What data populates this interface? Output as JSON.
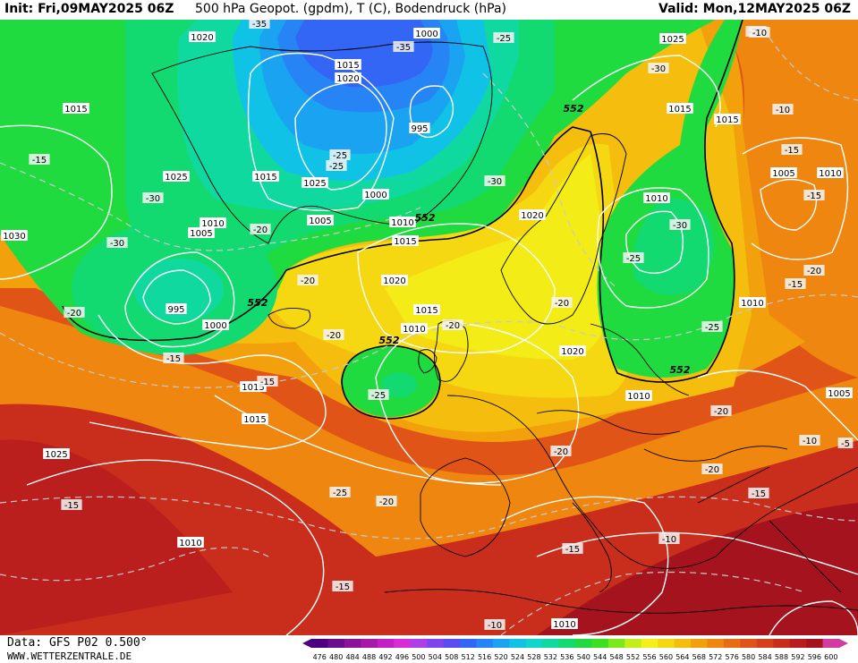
{
  "header": {
    "init": "Init: Fri,09MAY2025 06Z",
    "title": "500 hPa Geopot. (gpdm), T (C), Bodendruck (hPa)",
    "valid": "Valid: Mon,12MAY2025 06Z"
  },
  "footer": {
    "source": "Data: GFS P02 0.500°",
    "website": "WWW.WETTERZENTRALE.DE"
  },
  "legend": {
    "values": [
      476,
      480,
      484,
      488,
      492,
      496,
      500,
      504,
      508,
      512,
      516,
      520,
      524,
      528,
      532,
      536,
      540,
      544,
      548,
      552,
      556,
      560,
      564,
      568,
      572,
      576,
      580,
      584,
      588,
      592,
      596,
      600
    ],
    "colors": [
      "#4b0082",
      "#6a0c8c",
      "#8a1399",
      "#a61aa8",
      "#c41fc4",
      "#d92cd9",
      "#b03ee6",
      "#8046ee",
      "#5a4cf2",
      "#3366f5",
      "#2684f5",
      "#1aa3f0",
      "#10c2e6",
      "#0fd6cc",
      "#10d9a0",
      "#12d970",
      "#20db40",
      "#3ce020",
      "#7de81a",
      "#c4ee18",
      "#f2f018",
      "#f5d812",
      "#f5bd0e",
      "#f2a00c",
      "#ef8610",
      "#e86c14",
      "#e05418",
      "#d6401a",
      "#c92e1c",
      "#b81e1e",
      "#a5141e",
      "#d23ca0"
    ]
  },
  "map": {
    "geopotential_label": "552",
    "pressure_labels": [
      "1020",
      "1000",
      "1015",
      "1020",
      "995",
      "1015",
      "1025",
      "1015",
      "1025",
      "1000",
      "1005",
      "1010",
      "1010",
      "1005",
      "995",
      "1000",
      "1020",
      "1015",
      "1010",
      "1020",
      "1015",
      "1005",
      "1010",
      "1010",
      "1015",
      "1010",
      "1015",
      "1020",
      "1015",
      "1010",
      "1005",
      "1015",
      "1025",
      "1025",
      "1010",
      "1010",
      "1030"
    ],
    "temperature_labels": [
      "-35",
      "-35",
      "-25",
      "-20",
      "-15",
      "-25",
      "-25",
      "-30",
      "-30",
      "-30",
      "-30",
      "-30",
      "-25",
      "-20",
      "-20",
      "-20",
      "-15",
      "-20",
      "-20",
      "-20",
      "-25",
      "-15",
      "-25",
      "-15",
      "-20",
      "-20",
      "-20",
      "-25",
      "-20",
      "-15",
      "-15",
      "-20",
      "-15",
      "-10",
      "-10",
      "-15",
      "-10",
      "-10",
      "-15",
      "-15",
      "-10",
      "-5"
    ]
  }
}
